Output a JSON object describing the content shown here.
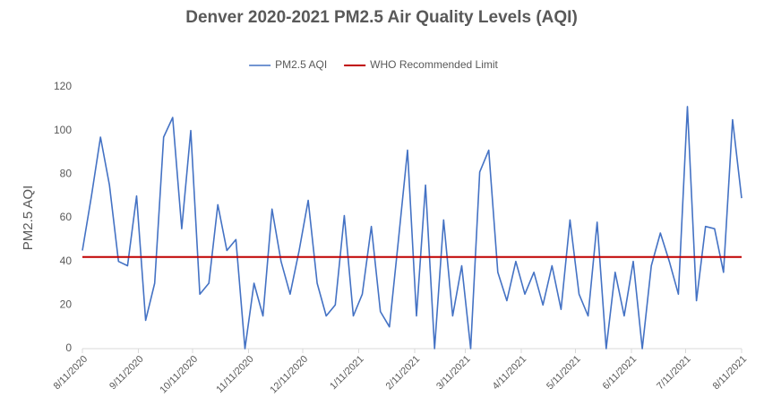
{
  "chart_data": {
    "type": "line",
    "title": "Denver 2020-2021 PM2.5 Air Quality Levels (AQI)",
    "y_label": "PM2.5 AQI",
    "x": [
      "8/11/2020",
      "8/16/2020",
      "8/21/2020",
      "8/26/2020",
      "8/31/2020",
      "9/5/2020",
      "9/10/2020",
      "9/15/2020",
      "9/20/2020",
      "9/25/2020",
      "9/30/2020",
      "10/5/2020",
      "10/10/2020",
      "10/15/2020",
      "10/20/2020",
      "10/25/2020",
      "10/30/2020",
      "11/4/2020",
      "11/9/2020",
      "11/14/2020",
      "11/19/2020",
      "11/24/2020",
      "11/29/2020",
      "12/4/2020",
      "12/9/2020",
      "12/14/2020",
      "12/19/2020",
      "12/24/2020",
      "12/29/2020",
      "1/3/2021",
      "1/8/2021",
      "1/13/2021",
      "1/18/2021",
      "1/23/2021",
      "1/28/2021",
      "2/2/2021",
      "2/7/2021",
      "2/12/2021",
      "2/17/2021",
      "2/22/2021",
      "2/27/2021",
      "3/4/2021",
      "3/9/2021",
      "3/14/2021",
      "3/19/2021",
      "3/24/2021",
      "3/29/2021",
      "4/3/2021",
      "4/8/2021",
      "4/13/2021",
      "4/18/2021",
      "4/23/2021",
      "4/28/2021",
      "5/3/2021",
      "5/8/2021",
      "5/13/2021",
      "5/18/2021",
      "5/23/2021",
      "5/28/2021",
      "6/2/2021",
      "6/7/2021",
      "6/12/2021",
      "6/17/2021",
      "6/22/2021",
      "6/27/2021",
      "7/2/2021",
      "7/7/2021",
      "7/12/2021",
      "7/17/2021",
      "7/22/2021",
      "7/27/2021",
      "8/1/2021",
      "8/6/2021",
      "8/11/2021"
    ],
    "series": [
      {
        "name": "PM2.5 AQI",
        "color": "#4472c4",
        "values": [
          45,
          70,
          97,
          75,
          40,
          38,
          70,
          13,
          30,
          97,
          106,
          55,
          100,
          25,
          30,
          66,
          45,
          50,
          0,
          30,
          15,
          64,
          40,
          25,
          45,
          68,
          30,
          15,
          20,
          61,
          15,
          25,
          56,
          17,
          10,
          50,
          91,
          15,
          75,
          0,
          59,
          15,
          38,
          0,
          81,
          91,
          35,
          22,
          40,
          25,
          35,
          20,
          38,
          18,
          59,
          25,
          15,
          58,
          0,
          35,
          15,
          40,
          0,
          38,
          53,
          40,
          25,
          111,
          22,
          56,
          55,
          35,
          105,
          69
        ]
      }
    ],
    "reference_lines": [
      {
        "name": "WHO Recommended Limit",
        "value": 42,
        "color": "#c00000"
      }
    ],
    "xlim": [
      "8/11/2020",
      "8/11/2021"
    ],
    "xticks": [
      "8/11/2020",
      "9/11/2020",
      "10/11/2020",
      "11/11/2020",
      "12/11/2020",
      "1/11/2021",
      "2/11/2021",
      "3/11/2021",
      "4/11/2021",
      "5/11/2021",
      "6/11/2021",
      "7/11/2021",
      "8/11/2021"
    ],
    "ylim": [
      0,
      120
    ],
    "yticks": [
      0,
      20,
      40,
      60,
      80,
      100,
      120
    ],
    "grid": false,
    "legend": "top"
  }
}
